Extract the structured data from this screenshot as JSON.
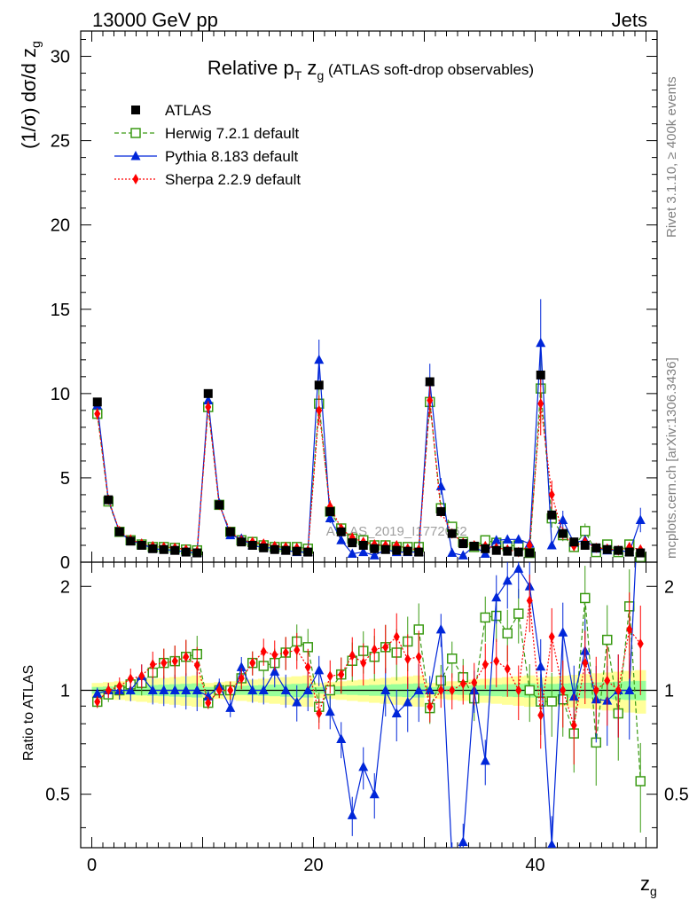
{
  "header": {
    "left": "13000 GeV pp",
    "right": "Jets"
  },
  "side_text": {
    "rivet": "Rivet 3.1.10, ≥ 400k events",
    "mcplots": "mcplots.cern.ch [arXiv:1306.3436]"
  },
  "watermark": "ATLAS_2019_I1772062",
  "chart_data": {
    "type": "line",
    "title": "Relative p_T z_g (ATLAS soft-drop observables)",
    "title_main": "Relative p",
    "title_sub_T": "T",
    "title_zg": " z",
    "title_sub_g": "g",
    "title_tail": " (ATLAS soft-drop observables)",
    "xlabel": "z_g",
    "ylabel": "(1/σ) dσ/d z_g",
    "ratio_ylabel": "Ratio to ATLAS",
    "xlim": [
      -1,
      51
    ],
    "ylim": [
      0,
      31.5
    ],
    "ratio_ylim": [
      0.35,
      2.35
    ],
    "x_ticks": [
      "0",
      "20",
      "40"
    ],
    "y_ticks": [
      "0",
      "5",
      "10",
      "15",
      "20",
      "25",
      "30"
    ],
    "ratio_ticks": [
      "0.5",
      "1",
      "2"
    ],
    "x": [
      0.5,
      1.5,
      2.5,
      3.5,
      4.5,
      5.5,
      6.5,
      7.5,
      8.5,
      9.5,
      10.5,
      11.5,
      12.5,
      13.5,
      14.5,
      15.5,
      16.5,
      17.5,
      18.5,
      19.5,
      20.5,
      21.5,
      22.5,
      23.5,
      24.5,
      25.5,
      26.5,
      27.5,
      28.5,
      29.5,
      30.5,
      31.5,
      32.5,
      33.5,
      34.5,
      35.5,
      36.5,
      37.5,
      38.5,
      39.5,
      40.5,
      41.5,
      42.5,
      43.5,
      44.5,
      45.5,
      46.5,
      47.5,
      48.5,
      49.5
    ],
    "series": [
      {
        "name": "ATLAS",
        "style": "data",
        "color": "#000000",
        "values": [
          9.5,
          3.7,
          1.8,
          1.25,
          1.0,
          0.8,
          0.75,
          0.7,
          0.6,
          0.55,
          10.0,
          3.4,
          1.8,
          1.2,
          1.0,
          0.85,
          0.75,
          0.7,
          0.65,
          0.6,
          10.5,
          3.0,
          1.8,
          1.15,
          1.0,
          0.8,
          0.75,
          0.7,
          0.65,
          0.6,
          10.7,
          3.0,
          1.7,
          1.1,
          0.95,
          0.8,
          0.7,
          0.65,
          0.6,
          0.55,
          11.1,
          2.8,
          1.7,
          1.2,
          1.0,
          0.85,
          0.75,
          0.7,
          0.6,
          0.55
        ]
      },
      {
        "name": "Herwig 7.2.1 default",
        "style": "open-square",
        "color": "#3a9a13",
        "values": [
          8.8,
          3.6,
          1.8,
          1.3,
          1.05,
          0.9,
          0.9,
          0.85,
          0.75,
          0.7,
          9.2,
          3.4,
          1.8,
          1.3,
          1.2,
          1.0,
          0.9,
          0.9,
          0.9,
          0.8,
          9.4,
          3.0,
          2.0,
          1.4,
          1.3,
          1.0,
          1.0,
          0.9,
          0.9,
          0.9,
          9.5,
          3.2,
          2.1,
          1.2,
          0.9,
          1.3,
          1.15,
          0.95,
          1.0,
          0.55,
          10.3,
          2.6,
          1.6,
          0.9,
          1.85,
          0.6,
          1.05,
          0.6,
          1.05,
          0.3
        ]
      },
      {
        "name": "Pythia 8.183 default",
        "style": "triangle",
        "color": "#0026d9",
        "values": [
          9.3,
          3.7,
          1.8,
          1.25,
          1.1,
          0.8,
          0.75,
          0.7,
          0.6,
          0.55,
          9.6,
          3.5,
          1.6,
          1.4,
          1.0,
          0.85,
          0.85,
          0.7,
          0.6,
          0.6,
          12.0,
          2.6,
          1.3,
          0.5,
          0.6,
          0.4,
          0.75,
          0.6,
          0.6,
          0.6,
          10.7,
          4.5,
          0.55,
          0.4,
          0.95,
          0.5,
          1.3,
          1.35,
          1.35,
          1.1,
          13.0,
          1.0,
          2.5,
          1.15,
          1.3,
          0.8,
          0.7,
          0.7,
          0.6,
          2.5
        ]
      },
      {
        "name": "Sherpa 2.2.9 default",
        "style": "diamond",
        "color": "#ff0000",
        "values": [
          8.8,
          3.7,
          1.85,
          1.35,
          1.1,
          0.95,
          0.9,
          0.85,
          0.75,
          0.65,
          9.2,
          3.4,
          1.8,
          1.3,
          1.2,
          1.1,
          0.95,
          0.9,
          0.85,
          0.7,
          9.0,
          3.3,
          2.0,
          1.45,
          1.2,
          1.05,
          1.0,
          1.0,
          0.8,
          0.75,
          9.6,
          3.0,
          1.7,
          1.15,
          1.0,
          0.95,
          0.85,
          0.75,
          0.6,
          1.0,
          9.4,
          4.0,
          1.7,
          0.95,
          1.2,
          0.85,
          0.8,
          0.7,
          0.9,
          0.75
        ]
      }
    ]
  }
}
